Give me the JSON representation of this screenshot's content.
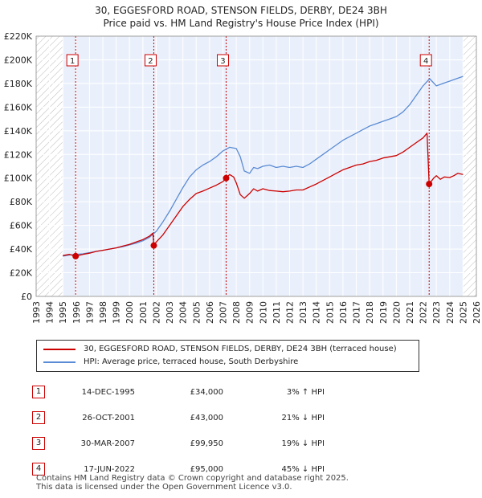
{
  "header": {
    "title": "30, EGGESFORD ROAD, STENSON FIELDS, DERBY, DE24 3BH",
    "subtitle": "Price paid vs. HM Land Registry's House Price Index (HPI)"
  },
  "chart_data": {
    "type": "line",
    "title": "30, EGGESFORD ROAD, STENSON FIELDS, DERBY, DE24 3BH",
    "subtitle": "Price paid vs. HM Land Registry's House Price Index (HPI)",
    "xlabel": "",
    "ylabel": "",
    "xlim": [
      1993,
      2026
    ],
    "ylim": [
      0,
      220000
    ],
    "x_ticks": [
      1993,
      1994,
      1995,
      1996,
      1997,
      1998,
      1999,
      2000,
      2001,
      2002,
      2003,
      2004,
      2005,
      2006,
      2007,
      2008,
      2009,
      2010,
      2011,
      2012,
      2013,
      2014,
      2015,
      2016,
      2017,
      2018,
      2019,
      2020,
      2021,
      2022,
      2023,
      2024,
      2025,
      2026
    ],
    "y_ticks": [
      0,
      20000,
      40000,
      60000,
      80000,
      100000,
      120000,
      140000,
      160000,
      180000,
      200000,
      220000
    ],
    "y_tick_labels": [
      "£0",
      "£20K",
      "£40K",
      "£60K",
      "£80K",
      "£100K",
      "£120K",
      "£140K",
      "£160K",
      "£180K",
      "£200K",
      "£220K"
    ],
    "hatched_ranges": [
      [
        1993,
        1995.0
      ],
      [
        2025.0,
        2026
      ]
    ],
    "series": [
      {
        "name": "30, EGGESFORD ROAD, STENSON FIELDS, DERBY, DE24 3BH (terraced house)",
        "color": "#cc0000",
        "x": [
          1995.0,
          1995.5,
          1995.96,
          1996.5,
          1997.0,
          1997.5,
          1998.0,
          1998.5,
          1999.0,
          1999.5,
          2000.0,
          2000.5,
          2001.0,
          2001.5,
          2001.75,
          2001.82,
          2002.0,
          2002.5,
          2003.0,
          2003.5,
          2004.0,
          2004.5,
          2005.0,
          2005.5,
          2006.0,
          2006.5,
          2007.0,
          2007.24,
          2007.5,
          2007.8,
          2008.0,
          2008.3,
          2008.6,
          2009.0,
          2009.3,
          2009.6,
          2010.0,
          2010.5,
          2011.0,
          2011.5,
          2012.0,
          2012.5,
          2013.0,
          2013.5,
          2014.0,
          2014.5,
          2015.0,
          2015.5,
          2016.0,
          2016.5,
          2017.0,
          2017.5,
          2018.0,
          2018.5,
          2019.0,
          2019.5,
          2020.0,
          2020.5,
          2021.0,
          2021.5,
          2022.0,
          2022.3,
          2022.46,
          2022.6,
          2022.8,
          2023.0,
          2023.3,
          2023.6,
          2024.0,
          2024.3,
          2024.6,
          2025.0
        ],
        "values": [
          34500,
          35500,
          34000,
          35500,
          36500,
          38000,
          39000,
          40000,
          41000,
          42500,
          44000,
          46000,
          48000,
          51000,
          53500,
          43000,
          46000,
          52000,
          60000,
          68000,
          76000,
          82000,
          87000,
          89000,
          91500,
          94000,
          97000,
          99950,
          103000,
          101000,
          96000,
          86000,
          83000,
          87000,
          91000,
          89000,
          91000,
          89500,
          89000,
          88500,
          89000,
          90000,
          90000,
          92500,
          95000,
          98000,
          101000,
          104000,
          107000,
          109000,
          111000,
          112000,
          114000,
          115000,
          117000,
          118000,
          119000,
          122000,
          126000,
          130000,
          134000,
          138000,
          95000,
          97000,
          100000,
          102000,
          99000,
          101000,
          100500,
          102000,
          104000,
          103000
        ]
      },
      {
        "name": "HPI: Average price, terraced house, South Derbyshire",
        "color": "#5b8bd4",
        "x": [
          1995.0,
          1995.5,
          1996.0,
          1996.5,
          1997.0,
          1997.5,
          1998.0,
          1998.5,
          1999.0,
          1999.5,
          2000.0,
          2000.5,
          2001.0,
          2001.5,
          2002.0,
          2002.5,
          2003.0,
          2003.5,
          2004.0,
          2004.5,
          2005.0,
          2005.5,
          2006.0,
          2006.5,
          2007.0,
          2007.5,
          2008.0,
          2008.3,
          2008.6,
          2009.0,
          2009.3,
          2009.6,
          2010.0,
          2010.5,
          2011.0,
          2011.5,
          2012.0,
          2012.5,
          2013.0,
          2013.5,
          2014.0,
          2014.5,
          2015.0,
          2015.5,
          2016.0,
          2016.5,
          2017.0,
          2017.5,
          2018.0,
          2018.5,
          2019.0,
          2019.5,
          2020.0,
          2020.5,
          2021.0,
          2021.5,
          2022.0,
          2022.5,
          2023.0,
          2023.5,
          2024.0,
          2024.5,
          2025.0
        ],
        "values": [
          34000,
          35000,
          35500,
          36000,
          37000,
          38000,
          39000,
          40000,
          41000,
          42000,
          43500,
          45000,
          47000,
          50000,
          55000,
          63000,
          72000,
          82000,
          92000,
          101000,
          107000,
          111000,
          114000,
          118000,
          123000,
          126000,
          125000,
          118000,
          106000,
          104000,
          109000,
          108000,
          110000,
          111000,
          109000,
          110000,
          109000,
          110000,
          109000,
          112000,
          116000,
          120000,
          124000,
          128000,
          132000,
          135000,
          138000,
          141000,
          144000,
          146000,
          148000,
          150000,
          152000,
          156000,
          162000,
          170000,
          178000,
          184000,
          178000,
          180000,
          182000,
          184000,
          186000
        ]
      }
    ],
    "sales": [
      {
        "label": "1",
        "x": 1995.96,
        "y": 34000
      },
      {
        "label": "2",
        "x": 2001.82,
        "y": 43000
      },
      {
        "label": "3",
        "x": 2007.24,
        "y": 99950
      },
      {
        "label": "4",
        "x": 2022.46,
        "y": 95000
      }
    ]
  },
  "legend": {
    "property_label": "30, EGGESFORD ROAD, STENSON FIELDS, DERBY, DE24 3BH (terraced house)",
    "hpi_label": "HPI: Average price, terraced house, South Derbyshire"
  },
  "transactions": [
    {
      "num": "1",
      "date": "14-DEC-1995",
      "price": "£34,000",
      "hpi": "3% ↑ HPI"
    },
    {
      "num": "2",
      "date": "26-OCT-2001",
      "price": "£43,000",
      "hpi": "21% ↓ HPI"
    },
    {
      "num": "3",
      "date": "30-MAR-2007",
      "price": "£99,950",
      "hpi": "19% ↓ HPI"
    },
    {
      "num": "4",
      "date": "17-JUN-2022",
      "price": "£95,000",
      "hpi": "45% ↓ HPI"
    }
  ],
  "footer": {
    "line1": "Contains HM Land Registry data © Crown copyright and database right 2025.",
    "line2": "This data is licensed under the Open Government Licence v3.0."
  }
}
